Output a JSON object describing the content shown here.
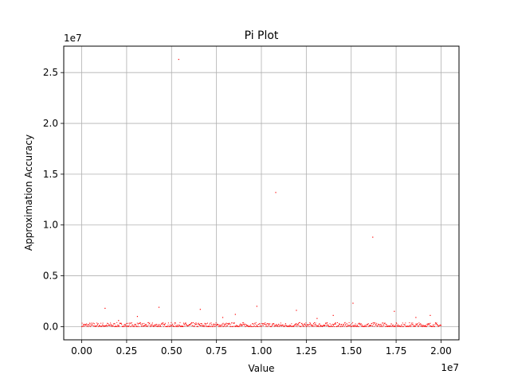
{
  "chart_data": {
    "type": "scatter",
    "title": "Pi Plot",
    "xlabel": "Value",
    "ylabel": "Approximation Accuracy",
    "x_offset_label": "1e7",
    "y_offset_label": "1e7",
    "xlim": [
      -1000000,
      21000000
    ],
    "ylim": [
      -1300000,
      27600000
    ],
    "x_ticks": [
      0,
      2500000,
      5000000,
      7500000,
      10000000,
      12500000,
      15000000,
      17500000,
      20000000
    ],
    "x_tick_labels": [
      "0.00",
      "0.25",
      "0.50",
      "0.75",
      "1.00",
      "1.25",
      "1.50",
      "1.75",
      "2.00"
    ],
    "y_ticks": [
      0,
      5000000,
      10000000,
      15000000,
      20000000,
      25000000
    ],
    "y_tick_labels": [
      "0.0",
      "0.5",
      "1.0",
      "1.5",
      "2.0",
      "2.5"
    ],
    "grid": true,
    "marker_color": "#ff0000",
    "outliers": [
      {
        "x": 1300000,
        "y": 1800000
      },
      {
        "x": 2050000,
        "y": 600000
      },
      {
        "x": 3100000,
        "y": 1000000
      },
      {
        "x": 4300000,
        "y": 1900000
      },
      {
        "x": 5400000,
        "y": 26300000
      },
      {
        "x": 6600000,
        "y": 1700000
      },
      {
        "x": 7850000,
        "y": 900000
      },
      {
        "x": 8550000,
        "y": 1200000
      },
      {
        "x": 9750000,
        "y": 2000000
      },
      {
        "x": 10800000,
        "y": 13200000
      },
      {
        "x": 11950000,
        "y": 1600000
      },
      {
        "x": 13100000,
        "y": 800000
      },
      {
        "x": 14000000,
        "y": 1100000
      },
      {
        "x": 15100000,
        "y": 2300000
      },
      {
        "x": 16200000,
        "y": 8800000
      },
      {
        "x": 17400000,
        "y": 1500000
      },
      {
        "x": 18600000,
        "y": 900000
      },
      {
        "x": 19400000,
        "y": 1100000
      }
    ],
    "baseline": {
      "x_start": 0,
      "x_end": 20000000,
      "y_max": 400000
    }
  }
}
